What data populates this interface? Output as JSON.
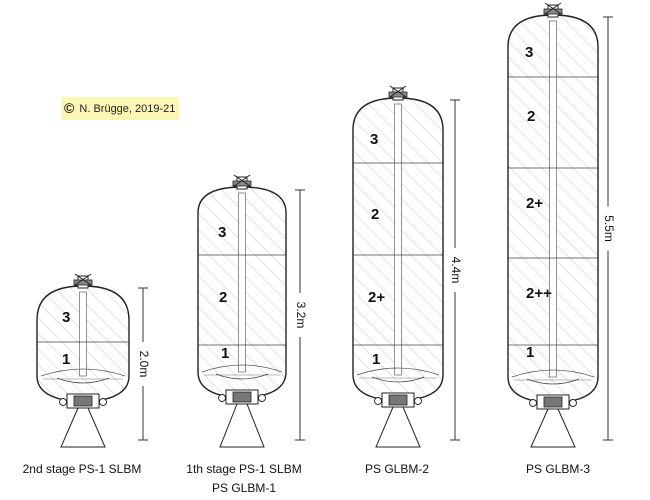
{
  "copyright": {
    "symbol": "©",
    "text": "N. Brügge, 2019-21"
  },
  "rockets": [
    {
      "id": "r1",
      "caption_lines": [
        "2nd stage PS-1 SLBM"
      ],
      "dimension": "2.0m",
      "stages": [
        {
          "label": "1"
        },
        {
          "label": "3"
        }
      ]
    },
    {
      "id": "r2",
      "caption_lines": [
        "1th stage PS-1 SLBM",
        "PS GLBM-1"
      ],
      "dimension": "3.2m",
      "stages": [
        {
          "label": "1"
        },
        {
          "label": "2"
        },
        {
          "label": "3"
        }
      ]
    },
    {
      "id": "r3",
      "caption_lines": [
        "PS GLBM-2"
      ],
      "dimension": "4.4m",
      "stages": [
        {
          "label": "1"
        },
        {
          "label": "2+"
        },
        {
          "label": "2"
        },
        {
          "label": "3"
        }
      ]
    },
    {
      "id": "r4",
      "caption_lines": [
        "PS GLBM-3"
      ],
      "dimension": "5.5m",
      "stages": [
        {
          "label": "1"
        },
        {
          "label": "2++"
        },
        {
          "label": "2+"
        },
        {
          "label": "2"
        },
        {
          "label": "3"
        }
      ]
    }
  ]
}
